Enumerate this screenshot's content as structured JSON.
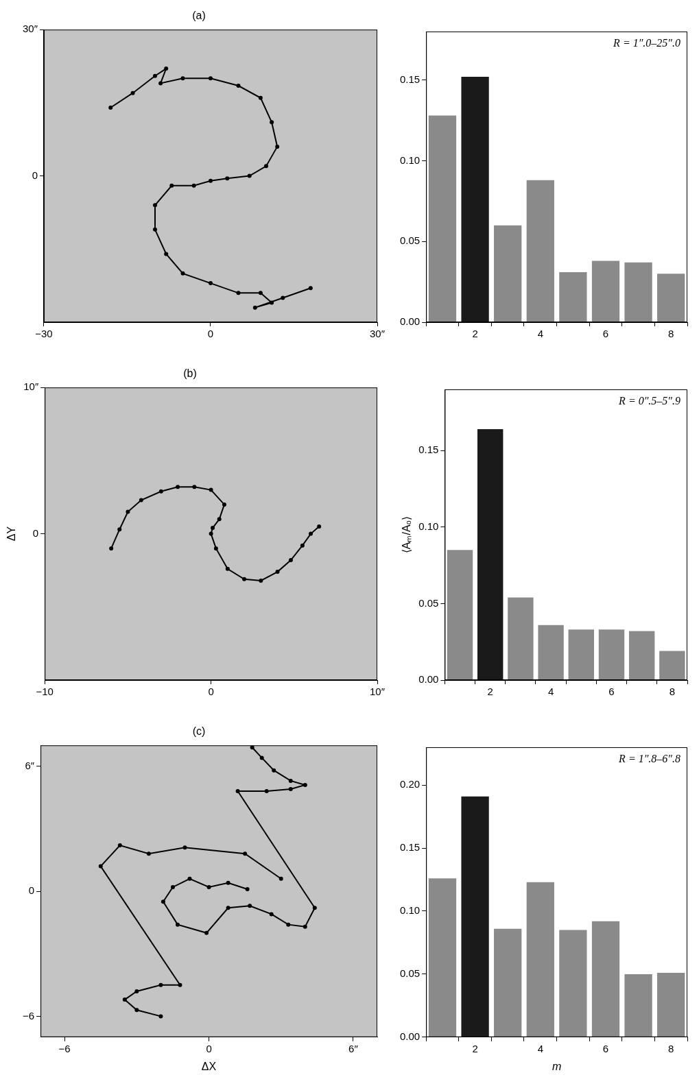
{
  "chart_data": [
    {
      "type": "scatter",
      "title": "(a)",
      "xlim": [
        -30,
        30
      ],
      "xticks": [
        {
          "value": -30,
          "label": "−30"
        },
        0,
        {
          "value": 30,
          "label": "30″"
        }
      ],
      "ylim": [
        -30,
        30
      ],
      "yticks": [
        0,
        {
          "value": 30,
          "label": "30″"
        }
      ],
      "grid": false,
      "series": [
        {
          "color": "#000000",
          "marker": "circle",
          "line_style": "solid",
          "x": [
            -18,
            -14,
            -10,
            -8,
            -9,
            -5,
            0,
            5,
            9,
            11,
            12,
            10,
            7,
            3,
            0,
            -3,
            -7,
            -10,
            -10,
            -8,
            -5,
            0,
            5,
            9,
            11,
            8,
            13,
            18
          ],
          "y": [
            14,
            17,
            20.5,
            22,
            19,
            20,
            20,
            18.5,
            16,
            11,
            6,
            2,
            0,
            -0.5,
            -1,
            -2,
            -2,
            -6,
            -11,
            -16,
            -20,
            -22,
            -24,
            -24,
            -26,
            -27,
            -25,
            -23
          ]
        }
      ]
    },
    {
      "type": "bar",
      "annotation": "R = 1″.0–25″.0",
      "categories": [
        null,
        "2",
        null,
        "4",
        null,
        "6",
        null,
        "8"
      ],
      "values": [
        0.128,
        0.152,
        0.06,
        0.088,
        0.031,
        0.038,
        0.037,
        0.03
      ],
      "colors": [
        "#8a8a8a",
        "#1a1a1a",
        "#8a8a8a",
        "#8a8a8a",
        "#8a8a8a",
        "#8a8a8a",
        "#8a8a8a",
        "#8a8a8a"
      ],
      "ylim": [
        0,
        0.18
      ],
      "yticks": [
        {
          "value": 0,
          "label": "0.00"
        },
        {
          "value": 0.05,
          "label": "0.05"
        },
        {
          "value": 0.1,
          "label": "0.10"
        },
        {
          "value": 0.15,
          "label": "0.15"
        }
      ],
      "grid": false
    },
    {
      "type": "scatter",
      "title": "(b)",
      "ylabel": "ΔY",
      "xlim": [
        -10,
        10
      ],
      "xticks": [
        {
          "value": -10,
          "label": "−10"
        },
        0,
        {
          "value": 10,
          "label": "10″"
        }
      ],
      "ylim": [
        -10,
        10
      ],
      "yticks": [
        0,
        {
          "value": 10,
          "label": "10″"
        }
      ],
      "grid": false,
      "series": [
        {
          "color": "#000000",
          "marker": "circle",
          "line_style": "solid",
          "x": [
            -6,
            -5.5,
            -5,
            -4.2,
            -3,
            -2,
            -1,
            0,
            0.8,
            0.5,
            0.1,
            0,
            0.3,
            1,
            2,
            3,
            4,
            4.8,
            5.5,
            6,
            6.5
          ],
          "y": [
            -1,
            0.3,
            1.5,
            2.3,
            2.9,
            3.2,
            3.2,
            3,
            2,
            1,
            0.4,
            0,
            -1,
            -2.4,
            -3.1,
            -3.2,
            -2.6,
            -1.8,
            -0.8,
            0,
            0.5
          ]
        }
      ]
    },
    {
      "type": "bar",
      "annotation": "R = 0″.5–5″.9",
      "ylabel": "⟨Aₘ/A₀⟩",
      "categories": [
        null,
        "2",
        null,
        "4",
        null,
        "6",
        null,
        "8"
      ],
      "values": [
        0.085,
        0.164,
        0.054,
        0.036,
        0.033,
        0.033,
        0.032,
        0.019
      ],
      "colors": [
        "#8a8a8a",
        "#1a1a1a",
        "#8a8a8a",
        "#8a8a8a",
        "#8a8a8a",
        "#8a8a8a",
        "#8a8a8a",
        "#8a8a8a"
      ],
      "ylim": [
        0,
        0.19
      ],
      "yticks": [
        {
          "value": 0,
          "label": "0.00"
        },
        {
          "value": 0.05,
          "label": "0.05"
        },
        {
          "value": 0.1,
          "label": "0.10"
        },
        {
          "value": 0.15,
          "label": "0.15"
        }
      ],
      "grid": false
    },
    {
      "type": "scatter",
      "title": "(c)",
      "xlabel": "ΔX",
      "xlim": [
        -7,
        7
      ],
      "xticks": [
        {
          "value": -6,
          "label": "−6"
        },
        0,
        {
          "value": 6,
          "label": "6″"
        }
      ],
      "ylim": [
        -7,
        7
      ],
      "yticks": [
        {
          "value": -6,
          "label": "−6"
        },
        0,
        {
          "value": 6,
          "label": "6″"
        }
      ],
      "grid": false,
      "series": [
        {
          "color": "#000000",
          "marker": "circle",
          "line_style": "solid",
          "x": [
            1.8,
            2.2,
            2.7,
            3.4,
            4.0,
            3.4,
            2.4,
            1.2,
            4.4,
            4.0,
            3.3,
            2.6,
            1.7,
            0.8,
            -0.1,
            -1.3,
            -1.9,
            -1.5,
            -0.8,
            0,
            0.8,
            1.6
          ],
          "y": [
            6.9,
            6.4,
            5.8,
            5.3,
            5.1,
            4.9,
            4.8,
            4.8,
            -0.8,
            -1.7,
            -1.6,
            -1.1,
            -0.7,
            -0.8,
            -2.0,
            -1.6,
            -0.5,
            0.2,
            0.6,
            0.2,
            0.4,
            0.1
          ]
        },
        {
          "color": "#000000",
          "marker": "circle",
          "line_style": "solid",
          "x": [
            -2.0,
            -3.0,
            -3.5,
            -3.0,
            -2.0,
            -1.2,
            -4.5,
            -3.7,
            -2.5,
            -1.0,
            1.5,
            3.0
          ],
          "y": [
            -6.0,
            -5.7,
            -5.2,
            -4.8,
            -4.5,
            -4.5,
            1.2,
            2.2,
            1.8,
            2.1,
            1.8,
            0.6
          ]
        }
      ]
    },
    {
      "type": "bar",
      "annotation": "R = 1″.8–6″.8",
      "xlabel": "m",
      "categories": [
        null,
        "2",
        null,
        "4",
        null,
        "6",
        null,
        "8"
      ],
      "values": [
        0.126,
        0.191,
        0.086,
        0.123,
        0.085,
        0.092,
        0.05,
        0.051
      ],
      "colors": [
        "#8a8a8a",
        "#1a1a1a",
        "#8a8a8a",
        "#8a8a8a",
        "#8a8a8a",
        "#8a8a8a",
        "#8a8a8a",
        "#8a8a8a"
      ],
      "ylim": [
        0,
        0.23
      ],
      "yticks": [
        {
          "value": 0,
          "label": "0.00"
        },
        {
          "value": 0.05,
          "label": "0.05"
        },
        {
          "value": 0.1,
          "label": "0.10"
        },
        {
          "value": 0.15,
          "label": "0.15"
        },
        {
          "value": 0.2,
          "label": "0.20"
        }
      ],
      "grid": false
    }
  ]
}
